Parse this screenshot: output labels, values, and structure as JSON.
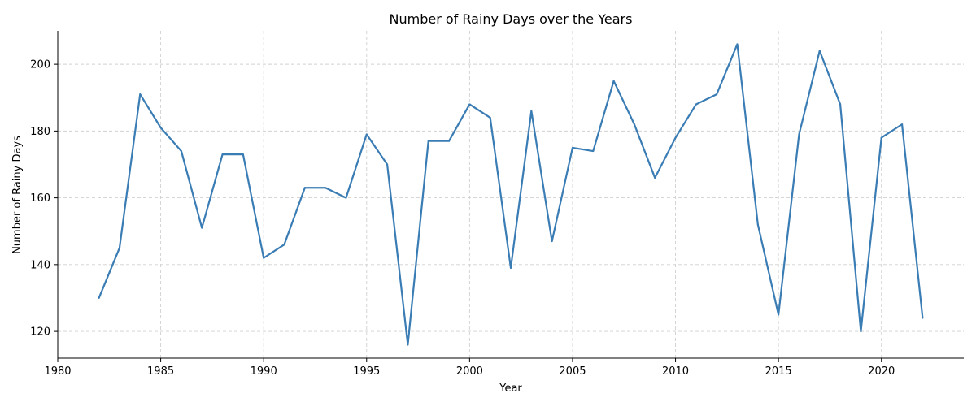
{
  "colors": {
    "series": "#3a7cb4",
    "grid": "#d0d0d0",
    "axis": "#000000"
  },
  "chart_data": {
    "type": "line",
    "title": "Number of Rainy Days over the Years",
    "xlabel": "Year",
    "ylabel": "Number of Rainy Days",
    "xlim": [
      1980,
      2024
    ],
    "ylim": [
      112,
      210
    ],
    "xticks": [
      1980,
      1985,
      1990,
      1995,
      2000,
      2005,
      2010,
      2015,
      2020
    ],
    "yticks": [
      120,
      140,
      160,
      180,
      200
    ],
    "grid": true,
    "series": [
      {
        "x": [
          1982,
          1983,
          1984,
          1985,
          1986,
          1987,
          1988,
          1989,
          1990,
          1991,
          1992,
          1993,
          1994,
          1995,
          1996,
          1997,
          1998,
          1999,
          2000,
          2001,
          2002,
          2003,
          2004,
          2005,
          2006,
          2007,
          2008,
          2009,
          2010,
          2011,
          2012,
          2013,
          2014,
          2015,
          2016,
          2017,
          2018,
          2019,
          2020,
          2021,
          2022
        ],
        "values": [
          130,
          145,
          191,
          181,
          174,
          151,
          173,
          173,
          142,
          146,
          163,
          163,
          160,
          179,
          170,
          116,
          177,
          177,
          188,
          184,
          139,
          186,
          147,
          175,
          174,
          195,
          182,
          166,
          178,
          188,
          191,
          206,
          152,
          125,
          179,
          204,
          188,
          120,
          178,
          182,
          124
        ]
      }
    ]
  }
}
